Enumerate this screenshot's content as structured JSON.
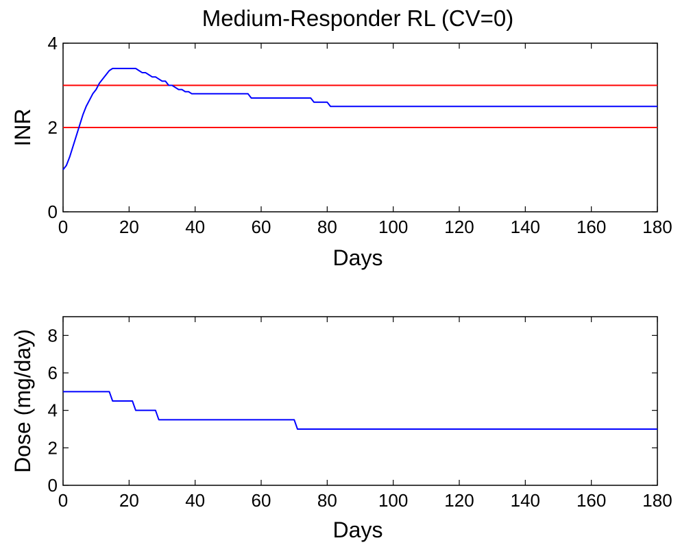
{
  "colors": {
    "inr_series": "#0000ff",
    "reference_lines": "#ff0000",
    "dose_series": "#0000ff"
  },
  "chart_data": [
    {
      "id": "inr",
      "type": "line",
      "title": "Medium-Responder RL (CV=0)",
      "xlabel": "Days",
      "ylabel": "INR",
      "xlim": [
        0,
        180
      ],
      "ylim": [
        0,
        4
      ],
      "xticks": [
        0,
        20,
        40,
        60,
        80,
        100,
        120,
        140,
        160,
        180
      ],
      "yticks": [
        0,
        2,
        4
      ],
      "grid": false,
      "series": [
        {
          "x": [
            0,
            1,
            2,
            3,
            4,
            5,
            6,
            7,
            8,
            9,
            10,
            11,
            12,
            13,
            14,
            15,
            16,
            17,
            18,
            19,
            20,
            21,
            22,
            23,
            24,
            25,
            26,
            27,
            28,
            29,
            30,
            31,
            32,
            33,
            34,
            35,
            36,
            37,
            38,
            39,
            40,
            56,
            57,
            75,
            76,
            80,
            81,
            180
          ],
          "y": [
            1.0,
            1.1,
            1.3,
            1.55,
            1.8,
            2.05,
            2.3,
            2.5,
            2.65,
            2.8,
            2.9,
            3.05,
            3.15,
            3.25,
            3.35,
            3.4,
            3.4,
            3.4,
            3.4,
            3.4,
            3.4,
            3.4,
            3.4,
            3.35,
            3.3,
            3.3,
            3.25,
            3.2,
            3.2,
            3.15,
            3.1,
            3.1,
            3.0,
            3.0,
            2.95,
            2.9,
            2.9,
            2.85,
            2.85,
            2.8,
            2.8,
            2.8,
            2.7,
            2.7,
            2.6,
            2.6,
            2.5,
            2.5
          ]
        }
      ],
      "reference_lines": [
        3,
        2
      ]
    },
    {
      "id": "dose",
      "type": "line",
      "xlabel": "Days",
      "ylabel": "Dose (mg/day)",
      "xlim": [
        0,
        180
      ],
      "ylim": [
        0,
        9
      ],
      "xticks": [
        0,
        20,
        40,
        60,
        80,
        100,
        120,
        140,
        160,
        180
      ],
      "yticks": [
        0,
        2,
        4,
        6,
        8
      ],
      "grid": false,
      "series": [
        {
          "x": [
            0,
            14,
            15,
            21,
            22,
            28,
            29,
            70,
            71,
            180
          ],
          "y": [
            5,
            5,
            4.5,
            4.5,
            4,
            4,
            3.5,
            3.5,
            3,
            3
          ]
        }
      ]
    }
  ]
}
